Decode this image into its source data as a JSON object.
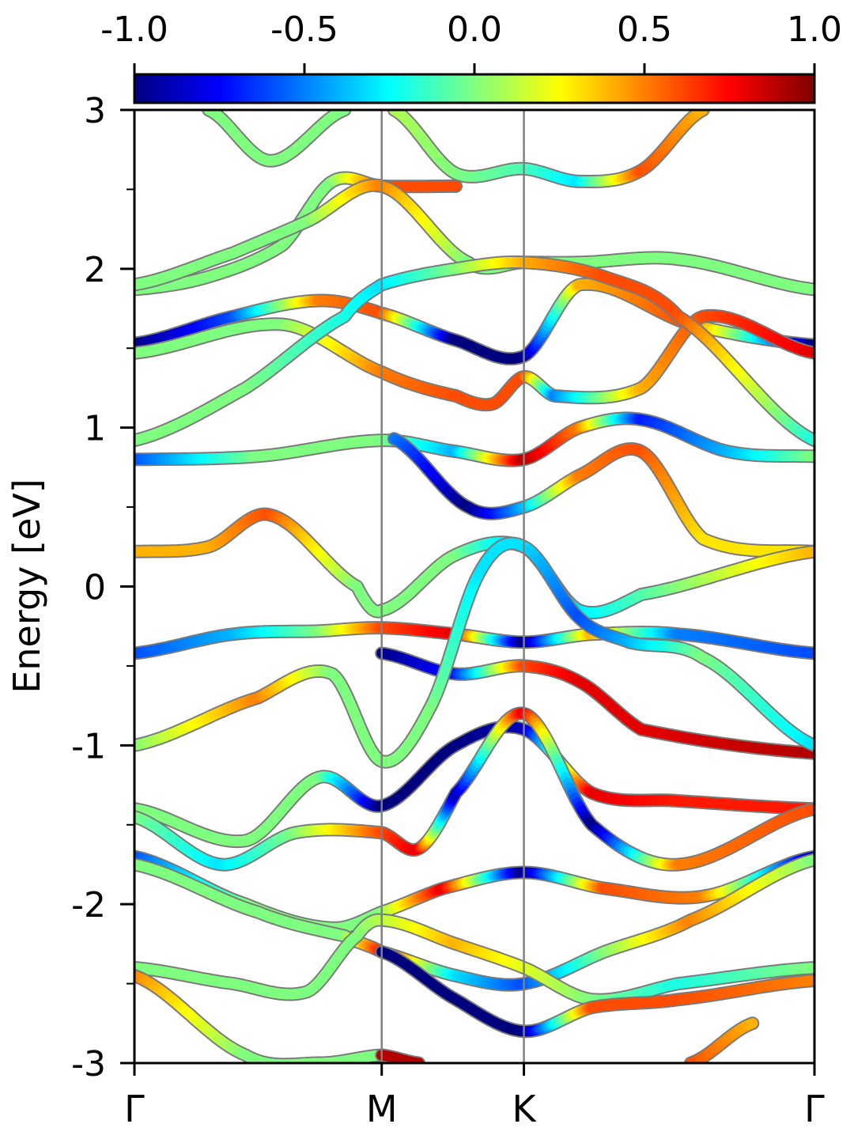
{
  "chart_data": {
    "type": "line",
    "title": "",
    "xlabel": "",
    "ylabel": "Energy [eV]",
    "ylim": [
      -3,
      3
    ],
    "y_ticks": [
      -3,
      -2,
      -1,
      0,
      1,
      2,
      3
    ],
    "y_tick_labels": [
      "-3",
      "-2",
      "-1",
      "0",
      "1",
      "2",
      "3"
    ],
    "y_minor_ticks": [
      -2.5,
      -1.5,
      -0.5,
      0.5,
      1.5,
      2.5
    ],
    "k_path_total": 5.5,
    "k_points": [
      {
        "label": "Γ",
        "k": 0
      },
      {
        "label": "M",
        "k": 2
      },
      {
        "label": "K",
        "k": 3.15
      },
      {
        "label": "Γ",
        "k": 5.5
      }
    ],
    "colorbar": {
      "colormap": "jet",
      "range": [
        -1,
        1
      ],
      "ticks": [
        -1.0,
        -0.5,
        0.0,
        0.5,
        1.0
      ],
      "tick_labels": [
        "-1.0",
        "-0.5",
        "0.0",
        "0.5",
        "1.0"
      ],
      "colors": [
        "#00007f",
        "#0000ff",
        "#007fff",
        "#00ffff",
        "#7fff7f",
        "#ffff00",
        "#ff7f00",
        "#ff0000",
        "#7f0000"
      ]
    },
    "series": [
      {
        "k": [
          0.6,
          1.1,
          1.7
        ],
        "e": [
          3.0,
          2.68,
          3.0
        ],
        "w": [
          0,
          0,
          0
        ]
      },
      {
        "k": [
          0,
          0.6,
          1.2,
          1.6,
          2,
          2.6
        ],
        "e": [
          1.87,
          1.95,
          2.15,
          2.55,
          2.52,
          2.52
        ],
        "w": [
          0,
          0,
          0,
          0,
          0.6,
          0.6
        ]
      },
      {
        "k": [
          0,
          0.8,
          1.4,
          2,
          2.7,
          3.15,
          3.6,
          4.4,
          5.5
        ],
        "e": [
          1.9,
          2.1,
          2.3,
          2.52,
          2.04,
          2.04,
          2.04,
          2.06,
          1.87
        ],
        "w": [
          0,
          0,
          0,
          0.5,
          0,
          0,
          0,
          0,
          0
        ]
      },
      {
        "k": [
          2.1,
          2.6,
          3.15,
          3.6,
          4.1,
          4.6
        ],
        "e": [
          3.0,
          2.6,
          2.63,
          2.55,
          2.62,
          3.0
        ],
        "w": [
          0.1,
          0,
          -0.1,
          -0.3,
          0.6,
          0.4
        ]
      },
      {
        "k": [
          0,
          0.8,
          1.5,
          2,
          2.6,
          3.15,
          3.6,
          4.5,
          5.5
        ],
        "e": [
          1.53,
          1.7,
          1.8,
          1.72,
          1.55,
          1.45,
          1.9,
          1.65,
          1.52
        ],
        "w": [
          -1,
          -0.6,
          0.5,
          0.6,
          -1,
          -1,
          0.4,
          0.6,
          -1
        ]
      },
      {
        "k": [
          0,
          1.2,
          2,
          2.6,
          2.9,
          3.15,
          3.4,
          4.1,
          4.6,
          5.5
        ],
        "e": [
          1.47,
          1.65,
          1.35,
          1.2,
          1.15,
          1.32,
          1.2,
          1.25,
          1.7,
          1.47
        ],
        "w": [
          0,
          0,
          0.5,
          0.6,
          0.6,
          0.6,
          -0.5,
          0.4,
          0.6,
          0.8
        ]
      },
      {
        "k": [
          0,
          0.9,
          1.7,
          2,
          2.6,
          3.15,
          3.8,
          4.4,
          5.5
        ],
        "e": [
          0.92,
          1.25,
          1.7,
          1.9,
          2.0,
          2.04,
          1.95,
          1.7,
          0.92
        ],
        "w": [
          0,
          0,
          -0.2,
          -0.3,
          0,
          0.4,
          0.6,
          0.6,
          -0.2
        ]
      },
      {
        "k": [
          0,
          1.0,
          2,
          2.6,
          3.15,
          3.6,
          4.1,
          4.8,
          5.5
        ],
        "e": [
          0.8,
          0.82,
          0.92,
          0.85,
          0.8,
          1.0,
          1.05,
          0.85,
          0.82
        ],
        "w": [
          -0.6,
          0,
          0,
          -0.4,
          0.9,
          0.5,
          -0.7,
          -0.4,
          0
        ]
      },
      {
        "k": [
          2.1,
          2.7,
          3.15,
          3.6,
          4.1,
          4.6,
          5.5
        ],
        "e": [
          0.93,
          0.5,
          0.5,
          0.7,
          0.85,
          0.3,
          0.22
        ],
        "w": [
          -0.5,
          -1,
          -0.4,
          0.5,
          0.6,
          0.3,
          0.3
        ]
      },
      {
        "k": [
          0,
          0.6,
          1.1,
          1.8,
          2,
          2.6,
          3.15,
          3.6,
          4.1,
          5.5
        ],
        "e": [
          0.22,
          0.25,
          0.45,
          0.0,
          -0.15,
          0.2,
          0.25,
          -0.15,
          -0.05,
          0.22
        ],
        "w": [
          0.4,
          0.4,
          0.6,
          0,
          0,
          0,
          -0.4,
          -0.3,
          -0.1,
          0.4
        ]
      },
      {
        "k": [
          0,
          0.8,
          1.5,
          2,
          2.6,
          3.15,
          3.7,
          4.4,
          5.5
        ],
        "e": [
          -0.42,
          -0.3,
          -0.28,
          -0.26,
          -0.3,
          -0.35,
          -0.3,
          -0.3,
          -0.42
        ],
        "w": [
          -0.6,
          -0.4,
          0,
          0.6,
          0.8,
          -1,
          0.4,
          -0.5,
          -0.6
        ]
      },
      {
        "k": [
          2,
          2.6,
          3.15,
          3.6,
          4.1,
          5.5
        ],
        "e": [
          -0.42,
          -0.55,
          -0.5,
          -0.6,
          -0.9,
          -1.05
        ],
        "w": [
          -1,
          -0.7,
          0.6,
          0.8,
          0.8,
          0.9
        ]
      },
      {
        "k": [
          0,
          1.0,
          1.6,
          2,
          2.4,
          2.8,
          3.15,
          3.6,
          4.0,
          4.6,
          5.5
        ],
        "e": [
          -1.0,
          -0.7,
          -0.55,
          -1.1,
          -0.75,
          0.1,
          0.25,
          -0.2,
          -0.35,
          -0.45,
          -1.0
        ],
        "w": [
          0,
          0.5,
          0,
          0,
          0,
          -0.3,
          -0.3,
          -0.6,
          -0.4,
          0,
          -0.3
        ]
      },
      {
        "k": [
          0,
          0.9,
          1.5,
          2,
          2.6,
          3.15,
          3.7,
          4.4,
          5.5
        ],
        "e": [
          -1.4,
          -1.6,
          -1.2,
          -1.38,
          -1.0,
          -0.9,
          -1.3,
          -1.35,
          -1.4
        ],
        "w": [
          0,
          0,
          0,
          -1,
          -1,
          -0.9,
          0.8,
          0.7,
          0.7
        ]
      },
      {
        "k": [
          0,
          0.7,
          1.3,
          2,
          2.3,
          2.6,
          3.15,
          3.7,
          4.4,
          5.5
        ],
        "e": [
          -1.45,
          -1.75,
          -1.55,
          -1.55,
          -1.65,
          -1.3,
          -0.8,
          -1.5,
          -1.75,
          -1.4
        ],
        "w": [
          0,
          -0.3,
          0,
          0.6,
          0.8,
          -0.9,
          0.8,
          -1,
          0.5,
          0.6
        ]
      },
      {
        "k": [
          0,
          0.9,
          1.6,
          2,
          2.5,
          3.15,
          3.8,
          4.6,
          5.5
        ],
        "e": [
          -1.7,
          -2.0,
          -2.15,
          -2.05,
          -1.9,
          -1.8,
          -1.9,
          -1.95,
          -1.7
        ],
        "w": [
          -0.6,
          0,
          0,
          0,
          0.8,
          -1,
          0.6,
          0.5,
          -0.9
        ]
      },
      {
        "k": [
          0,
          1.0,
          1.7,
          2,
          2.6,
          3.15,
          3.8,
          4.5,
          5.5
        ],
        "e": [
          -1.75,
          -2.05,
          -2.2,
          -2.3,
          -2.45,
          -2.5,
          -2.3,
          -2.1,
          -1.72
        ],
        "w": [
          0,
          0,
          0,
          0.7,
          -0.3,
          -0.6,
          0,
          0.5,
          0
        ]
      },
      {
        "k": [
          0,
          0.8,
          1.4,
          1.8,
          2,
          2.6,
          3.15,
          3.7,
          4.4,
          5.5
        ],
        "e": [
          -2.4,
          -2.5,
          -2.55,
          -2.2,
          -2.1,
          -2.25,
          -2.4,
          -2.6,
          -2.5,
          -2.4
        ],
        "w": [
          0,
          0,
          0,
          0,
          0.1,
          0.4,
          0.2,
          0,
          -0.2,
          0
        ]
      },
      {
        "k": [
          0,
          0.9,
          1.5,
          2
        ],
        "e": [
          -2.45,
          -2.95,
          -3.0,
          -2.95
        ],
        "w": [
          0.5,
          0,
          0,
          0
        ]
      },
      {
        "k": [
          2,
          2.6,
          3.15,
          3.7,
          4.4,
          5.5
        ],
        "e": [
          -2.3,
          -2.6,
          -2.8,
          -2.65,
          -2.6,
          -2.48
        ],
        "w": [
          -1,
          -1,
          -1,
          0.6,
          0.6,
          0.5
        ]
      },
      {
        "k": [
          2,
          2.3
        ],
        "e": [
          -2.95,
          -3.0
        ],
        "w": [
          0.9,
          0.9
        ]
      },
      {
        "k": [
          4.5,
          5.0
        ],
        "e": [
          -3.0,
          -2.75
        ],
        "w": [
          0.6,
          0.4
        ]
      }
    ]
  }
}
